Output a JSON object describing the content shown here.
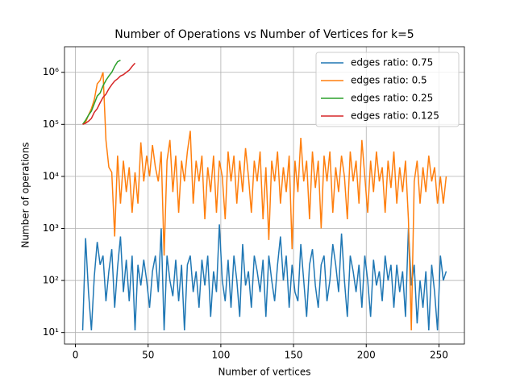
{
  "chart_data": {
    "type": "line",
    "title": "Number of Operations vs Number of Vertices for k=5",
    "x_label": "Number of vertices",
    "y_label": "Number of operations",
    "xlim": [
      -7.5,
      267.5
    ],
    "xticks": [
      0,
      50,
      100,
      150,
      200,
      250
    ],
    "ylim": [
      6.0,
      3100000
    ],
    "y_scale": "log",
    "yticks": [
      {
        "value": 10,
        "label": "10¹"
      },
      {
        "value": 100,
        "label": "10²"
      },
      {
        "value": 1000,
        "label": "10³"
      },
      {
        "value": 10000,
        "label": "10⁴"
      },
      {
        "value": 100000,
        "label": "10⁵"
      },
      {
        "value": 1000000,
        "label": "10⁶"
      }
    ],
    "grid": true,
    "legend": "upper right",
    "series": [
      {
        "name": "edges ratio: 0.75",
        "color": "#1f77b4",
        "x": [
          5,
          7,
          9,
          11,
          13,
          15,
          17,
          19,
          21,
          23,
          25,
          27,
          29,
          31,
          33,
          35,
          37,
          39,
          41,
          43,
          45,
          47,
          49,
          51,
          53,
          55,
          57,
          59,
          61,
          63,
          65,
          67,
          69,
          71,
          73,
          75,
          77,
          79,
          81,
          83,
          85,
          87,
          89,
          91,
          93,
          95,
          97,
          99,
          101,
          103,
          105,
          107,
          109,
          111,
          113,
          115,
          117,
          119,
          121,
          123,
          125,
          127,
          129,
          131,
          133,
          135,
          137,
          139,
          141,
          143,
          145,
          147,
          149,
          151,
          153,
          155,
          157,
          159,
          161,
          163,
          165,
          167,
          169,
          171,
          173,
          175,
          177,
          179,
          181,
          183,
          185,
          187,
          189,
          191,
          193,
          195,
          197,
          199,
          201,
          203,
          205,
          207,
          209,
          211,
          213,
          215,
          217,
          219,
          221,
          223,
          225,
          227,
          229,
          231,
          233,
          235,
          237,
          239,
          241,
          243,
          245,
          247,
          249,
          251,
          253,
          255
        ],
        "values": [
          11,
          650,
          60,
          11,
          120,
          550,
          200,
          300,
          40,
          150,
          400,
          30,
          180,
          700,
          60,
          250,
          40,
          300,
          11,
          200,
          80,
          250,
          100,
          30,
          150,
          300,
          60,
          1000,
          11,
          300,
          100,
          50,
          250,
          40,
          200,
          11,
          200,
          300,
          60,
          150,
          30,
          250,
          80,
          300,
          20,
          150,
          60,
          1200,
          100,
          40,
          250,
          30,
          300,
          100,
          20,
          500,
          80,
          150,
          30,
          300,
          150,
          60,
          250,
          20,
          300,
          100,
          40,
          200,
          700,
          100,
          300,
          30,
          200,
          60,
          40,
          500,
          100,
          20,
          200,
          400,
          80,
          30,
          200,
          300,
          40,
          100,
          500,
          200,
          60,
          800,
          100,
          20,
          300,
          150,
          60,
          200,
          30,
          300,
          100,
          20,
          250,
          80,
          150,
          40,
          300,
          100,
          200,
          30,
          200,
          60,
          150,
          20,
          1000,
          80,
          200,
          15,
          100,
          30,
          150,
          11,
          200,
          60,
          11,
          300,
          100,
          150
        ]
      },
      {
        "name": "edges ratio: 0.5",
        "color": "#ff7f0e",
        "x": [
          5,
          7,
          9,
          11,
          13,
          15,
          17,
          19,
          21,
          23,
          25,
          27,
          29,
          31,
          33,
          35,
          37,
          39,
          41,
          43,
          45,
          47,
          49,
          51,
          53,
          55,
          57,
          59,
          61,
          63,
          65,
          67,
          69,
          71,
          73,
          75,
          77,
          79,
          81,
          83,
          85,
          87,
          89,
          91,
          93,
          95,
          97,
          99,
          101,
          103,
          105,
          107,
          109,
          111,
          113,
          115,
          117,
          119,
          121,
          123,
          125,
          127,
          129,
          131,
          133,
          135,
          137,
          139,
          141,
          143,
          145,
          147,
          149,
          151,
          153,
          155,
          157,
          159,
          161,
          163,
          165,
          167,
          169,
          171,
          173,
          175,
          177,
          179,
          181,
          183,
          185,
          187,
          189,
          191,
          193,
          195,
          197,
          199,
          201,
          203,
          205,
          207,
          209,
          211,
          213,
          215,
          217,
          219,
          221,
          223,
          225,
          227,
          229,
          231,
          233,
          235,
          237,
          239,
          241,
          243,
          245,
          247,
          249,
          251,
          253,
          255
        ],
        "values": [
          100000,
          110000,
          150000,
          200000,
          300000,
          600000,
          700000,
          1000000,
          50000,
          15000,
          12000,
          700,
          25000,
          3000,
          20000,
          5000,
          15000,
          2000,
          12000,
          3000,
          45000,
          8000,
          25000,
          10000,
          40000,
          15000,
          8000,
          30000,
          300,
          20000,
          50000,
          5000,
          25000,
          2000,
          20000,
          8000,
          30000,
          75000,
          3000,
          20000,
          8000,
          25000,
          1500,
          15000,
          5000,
          25000,
          2000,
          20000,
          10000,
          1500,
          30000,
          8000,
          25000,
          3000,
          20000,
          5000,
          35000,
          10000,
          2000,
          20000,
          8000,
          30000,
          1500,
          15000,
          600,
          20000,
          8000,
          30000,
          3000,
          15000,
          5000,
          25000,
          400,
          20000,
          5000,
          55000,
          8000,
          20000,
          1500,
          30000,
          6000,
          20000,
          1000,
          25000,
          8000,
          30000,
          2000,
          15000,
          5000,
          25000,
          10000,
          1500,
          30000,
          8000,
          20000,
          3000,
          50000,
          10000,
          2000,
          20000,
          5000,
          30000,
          8000,
          15000,
          2000,
          20000,
          6000,
          30000,
          3000,
          15000,
          5000,
          20000,
          1500,
          11,
          8000,
          20000,
          3000,
          15000,
          5000,
          25000,
          8000,
          15000,
          3000,
          10000,
          3000,
          10000
        ]
      },
      {
        "name": "edges ratio: 0.25",
        "color": "#2ca02c",
        "x": [
          5,
          7,
          9,
          11,
          13,
          15,
          17,
          19,
          21,
          23,
          25,
          27,
          29,
          31
        ],
        "values": [
          100000,
          120000,
          150000,
          180000,
          250000,
          350000,
          400000,
          550000,
          700000,
          850000,
          1000000,
          1300000,
          1600000,
          1700000
        ]
      },
      {
        "name": "edges ratio: 0.125",
        "color": "#d62728",
        "x": [
          5,
          7,
          9,
          11,
          13,
          15,
          17,
          19,
          21,
          23,
          25,
          27,
          29,
          31,
          33,
          35,
          37,
          39,
          41
        ],
        "values": [
          100000,
          105000,
          115000,
          130000,
          170000,
          200000,
          260000,
          330000,
          380000,
          480000,
          580000,
          680000,
          750000,
          850000,
          900000,
          1000000,
          1100000,
          1300000,
          1500000
        ]
      }
    ]
  }
}
